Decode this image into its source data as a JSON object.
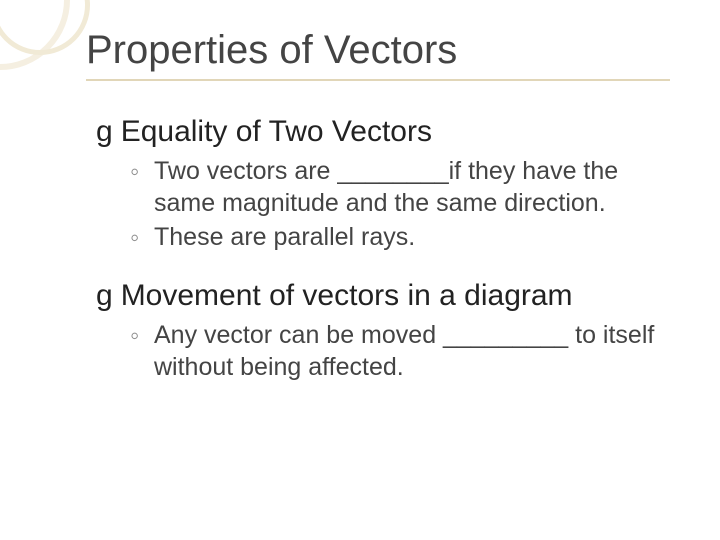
{
  "slide": {
    "title": "Properties of Vectors",
    "title_color": "#444444",
    "title_fontsize": 40,
    "underline_color": "#e1d6b8",
    "background_color": "#ffffff",
    "corner_ring_colors": [
      "#f5efe1",
      "#f1ead6"
    ],
    "sections": [
      {
        "bullet_glyph": "g",
        "heading": "Equality of Two Vectors",
        "heading_fontsize": 30,
        "heading_color": "#222222",
        "items": [
          "Two vectors are ________if they have the same magnitude and the same direction.",
          "These are parallel rays."
        ]
      },
      {
        "bullet_glyph": "g",
        "heading": "Movement of vectors in a diagram",
        "heading_fontsize": 30,
        "heading_color": "#222222",
        "items": [
          "Any vector can be moved _________ to itself without being affected."
        ]
      }
    ],
    "sub_bullet_glyph": "◦",
    "sub_text_fontsize": 25,
    "sub_text_color": "#444444",
    "sub_bullet_color": "#8c8c8c"
  }
}
